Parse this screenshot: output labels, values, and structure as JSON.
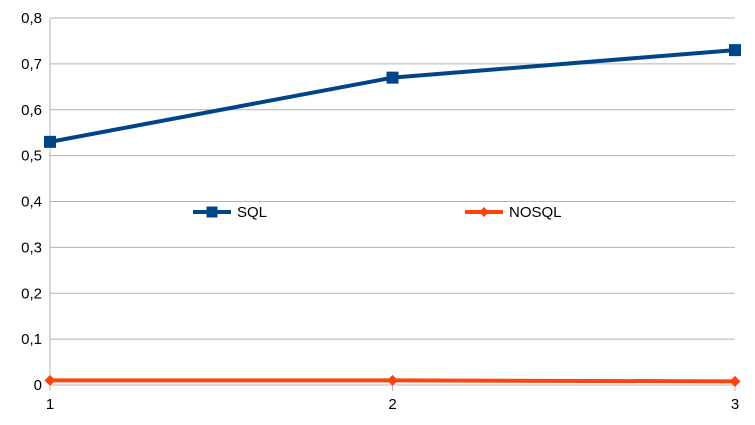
{
  "chart_data": {
    "type": "line",
    "x": [
      1,
      2,
      3
    ],
    "x_tick_labels": [
      "1",
      "2",
      "3"
    ],
    "y_tick_labels": [
      "0",
      "0,1",
      "0,2",
      "0,3",
      "0,4",
      "0,5",
      "0,6",
      "0,7",
      "0,8"
    ],
    "ylim": [
      0,
      0.8
    ],
    "grid": "horizontal",
    "legend_position": "inside-middle",
    "series": [
      {
        "name": "SQL",
        "values": [
          0.53,
          0.67,
          0.73
        ],
        "color": "#004586",
        "marker": "square"
      },
      {
        "name": "NOSQL",
        "values": [
          0.01,
          0.01,
          0.008
        ],
        "color": "#ff420e",
        "marker": "diamond"
      }
    ],
    "title": "",
    "xlabel": "",
    "ylabel": ""
  }
}
